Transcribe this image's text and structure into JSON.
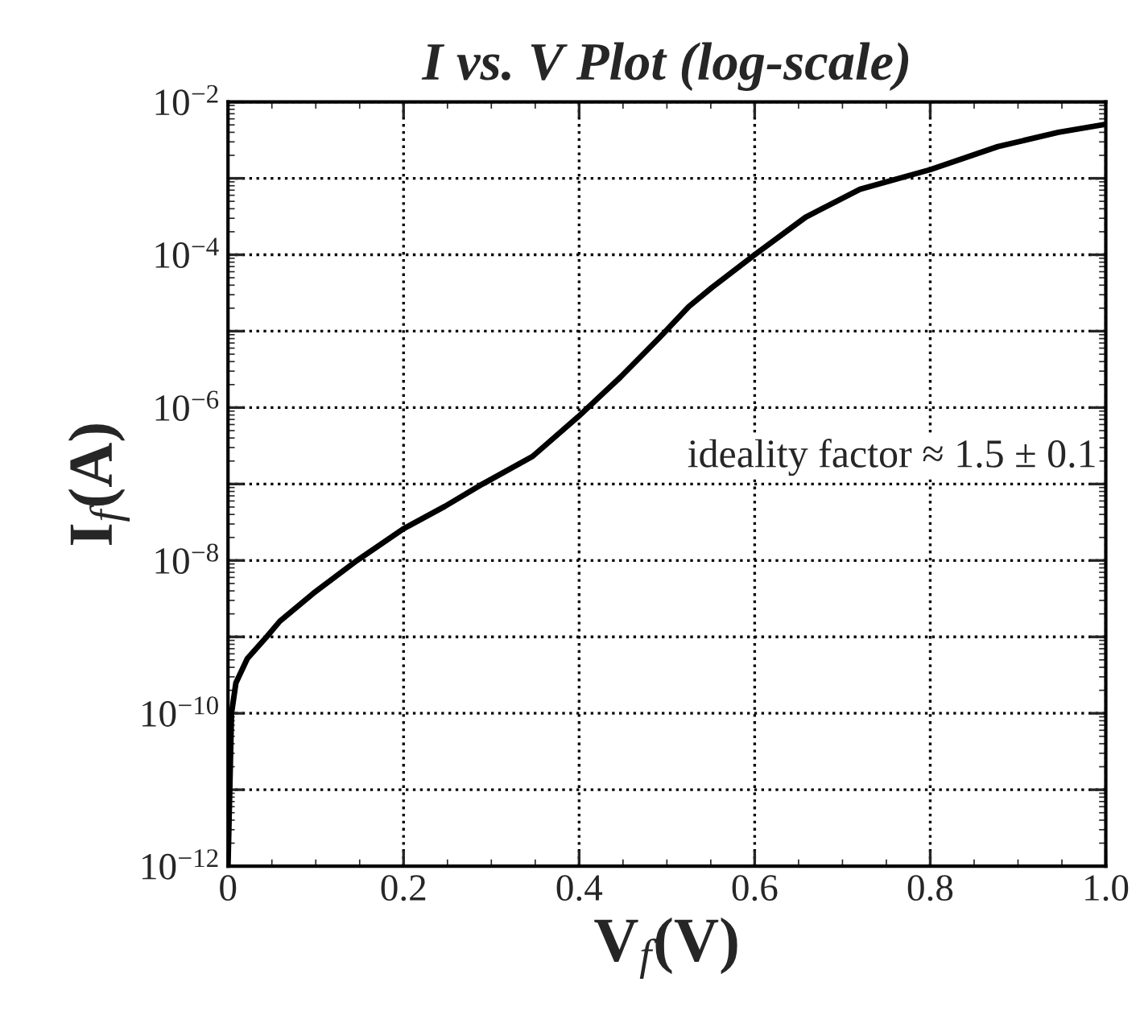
{
  "chart_data": {
    "type": "line",
    "title": "I vs. V Plot (log-scale)",
    "xlabel": "V$_{f}$(V)",
    "ylabel": "I$_{f}$(A)",
    "x": [
      0,
      0.002,
      0.004,
      0.009,
      0.022,
      0.044,
      0.059,
      0.097,
      0.147,
      0.2,
      0.247,
      0.29,
      0.347,
      0.399,
      0.447,
      0.491,
      0.525,
      0.551,
      0.6,
      0.658,
      0.72,
      0.8,
      0.877,
      0.946,
      1.0
    ],
    "series": [
      {
        "color": "#000000",
        "values": [
          1e-12,
          1e-11,
          1e-10,
          2.5e-10,
          5.2e-10,
          1e-09,
          1.6e-09,
          3.7e-09,
          1e-08,
          2.6e-08,
          5.1e-08,
          1e-07,
          2.3e-07,
          7.6e-07,
          2.5e-06,
          8.1e-06,
          2.1e-05,
          3.7e-05,
          0.0001,
          0.00031,
          0.00072,
          0.0013,
          0.0026,
          0.004,
          0.0051
        ]
      }
    ],
    "xlim": [
      0,
      1.0
    ],
    "xticks": [
      {
        "value": 0,
        "label": "0"
      },
      0.2,
      0.4,
      0.6,
      0.8,
      {
        "value": 1.0,
        "label": "1.0"
      }
    ],
    "ylim": [
      1e-12,
      0.01
    ],
    "yticks": [
      {
        "value": 1e-12,
        "label": "10$^{−12}$"
      },
      {
        "value": 1e-11,
        "label": null
      },
      {
        "value": 1e-10,
        "label": "10$^{−10}$"
      },
      {
        "value": 1e-09,
        "label": null
      },
      {
        "value": 1e-08,
        "label": "10$^{−8}$"
      },
      {
        "value": 1e-07,
        "label": null
      },
      {
        "value": 1e-06,
        "label": "10$^{−6}$"
      },
      {
        "value": 1e-05,
        "label": null
      },
      {
        "value": 0.0001,
        "label": "10$^{−4}$"
      },
      {
        "value": 0.001,
        "label": null
      },
      {
        "value": 0.01,
        "label": "10$^{−2}$"
      }
    ],
    "log": "y",
    "grid": true,
    "line_style": "solid",
    "marker": "none",
    "legend": false,
    "annotations": [
      "ideality factor ≈ 1.5 ± 0.1"
    ]
  }
}
